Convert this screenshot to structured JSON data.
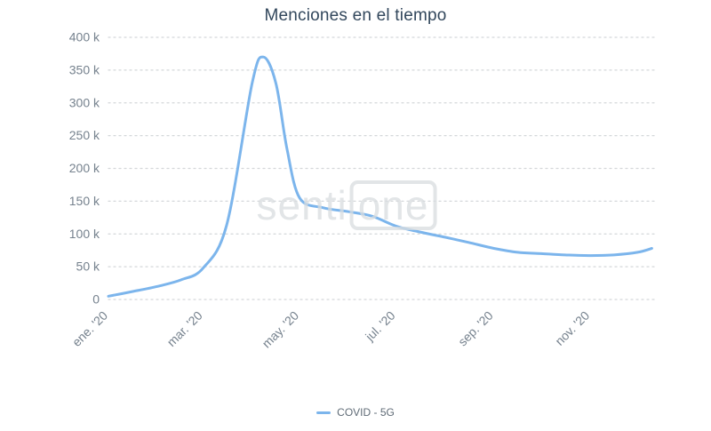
{
  "title": "Menciones en el tiempo",
  "watermark": {
    "part1": "senti",
    "part2": "one"
  },
  "legend": {
    "label": "COVID - 5G",
    "color": "#7cb5ec"
  },
  "colors": {
    "series": "#7cb5ec",
    "grid": "#d4d7da",
    "axis_text": "#76828e",
    "title_text": "#32475c"
  },
  "chart_data": {
    "type": "line",
    "title": "Menciones en el tiempo",
    "xlabel": "",
    "ylabel": "",
    "ylim": [
      0,
      400000
    ],
    "x_range": [
      "2020-01-01",
      "2020-12-12"
    ],
    "grid": "dotted horizontal",
    "legend_position": "bottom",
    "yticks": [
      {
        "value": 0,
        "label": "0"
      },
      {
        "value": 50000,
        "label": "50 k"
      },
      {
        "value": 100000,
        "label": "100 k"
      },
      {
        "value": 150000,
        "label": "150 k"
      },
      {
        "value": 200000,
        "label": "200 k"
      },
      {
        "value": 250000,
        "label": "250 k"
      },
      {
        "value": 300000,
        "label": "300 k"
      },
      {
        "value": 350000,
        "label": "350 k"
      },
      {
        "value": 400000,
        "label": "400 k"
      }
    ],
    "xticks": [
      {
        "date": "2020-01-01",
        "label": "ene. '20"
      },
      {
        "date": "2020-03-01",
        "label": "mar. '20"
      },
      {
        "date": "2020-05-01",
        "label": "may. '20"
      },
      {
        "date": "2020-07-01",
        "label": "jul. '20"
      },
      {
        "date": "2020-09-01",
        "label": "sep. '20"
      },
      {
        "date": "2020-11-01",
        "label": "nov. '20"
      }
    ],
    "series": [
      {
        "name": "COVID - 5G",
        "color": "#7cb5ec",
        "points": [
          [
            "2020-01-01",
            5000
          ],
          [
            "2020-01-16",
            12000
          ],
          [
            "2020-02-01",
            20000
          ],
          [
            "2020-02-16",
            30000
          ],
          [
            "2020-03-01",
            48000
          ],
          [
            "2020-03-16",
            115000
          ],
          [
            "2020-04-01",
            330000
          ],
          [
            "2020-04-08",
            370000
          ],
          [
            "2020-04-16",
            330000
          ],
          [
            "2020-04-23",
            230000
          ],
          [
            "2020-05-01",
            155000
          ],
          [
            "2020-05-16",
            140000
          ],
          [
            "2020-06-01",
            134000
          ],
          [
            "2020-06-16",
            127000
          ],
          [
            "2020-07-01",
            112000
          ],
          [
            "2020-07-16",
            103000
          ],
          [
            "2020-08-01",
            95000
          ],
          [
            "2020-08-16",
            87000
          ],
          [
            "2020-09-01",
            78000
          ],
          [
            "2020-09-16",
            72000
          ],
          [
            "2020-10-01",
            70000
          ],
          [
            "2020-10-16",
            68000
          ],
          [
            "2020-11-01",
            67000
          ],
          [
            "2020-11-16",
            68000
          ],
          [
            "2020-12-01",
            72000
          ],
          [
            "2020-12-10",
            78000
          ]
        ]
      }
    ]
  }
}
